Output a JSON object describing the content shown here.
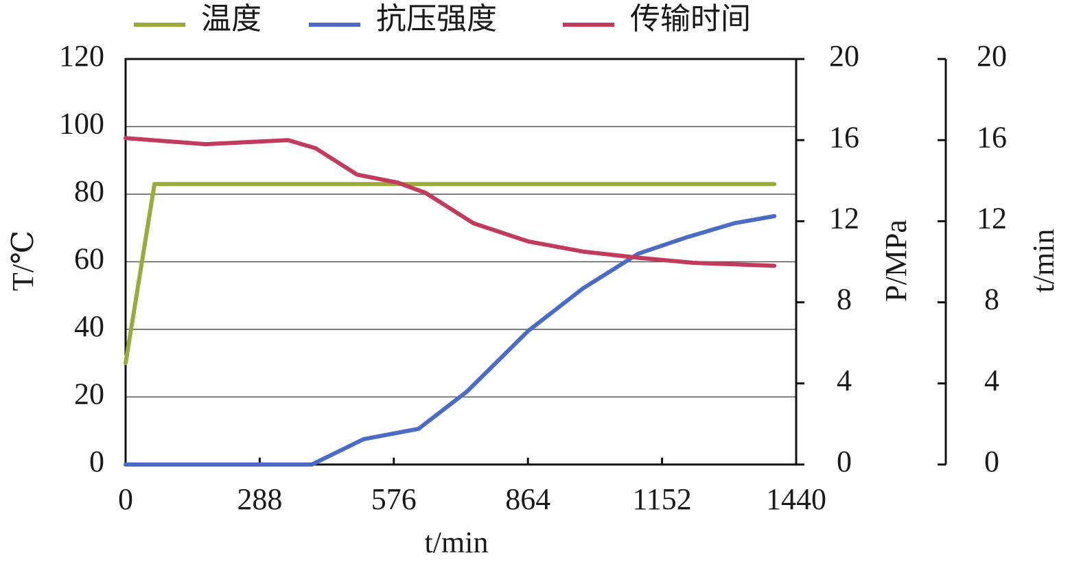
{
  "chart_data": {
    "type": "line",
    "x_label": "t/min",
    "y_label": "T/℃",
    "y2_label": "P/MPa",
    "y3_label": "t/min",
    "xlim": [
      0,
      1440
    ],
    "xticks": [
      0,
      288,
      576,
      864,
      1152,
      1440
    ],
    "ylim": [
      0,
      120
    ],
    "yticks": [
      0,
      20,
      40,
      60,
      80,
      100,
      120
    ],
    "y2lim": [
      0,
      20
    ],
    "y2ticks": [
      0,
      4,
      8,
      12,
      16,
      20
    ],
    "y3lim": [
      0,
      20
    ],
    "y3ticks": [
      0,
      4,
      8,
      12,
      16,
      20
    ],
    "grid": true,
    "series": [
      {
        "name": "温度",
        "color": "#9aab3c",
        "x": [
          0,
          62,
          1393
        ],
        "values": [
          30,
          83,
          83
        ]
      },
      {
        "name": "抗压强度",
        "color": "#4a6cc4",
        "axis": "y2",
        "x": [
          0,
          400,
          511,
          629,
          733,
          865,
          983,
          1101,
          1204,
          1307,
          1393
        ],
        "values": [
          0,
          0,
          1.25,
          1.76,
          3.6,
          6.6,
          8.7,
          10.4,
          11.2,
          11.9,
          12.25
        ]
      },
      {
        "name": "传输时间",
        "color": "#c23a5c",
        "axis": "y3",
        "x": [
          0,
          172,
          349,
          408,
          497,
          585,
          644,
          747,
          865,
          983,
          1101,
          1219,
          1393
        ],
        "values": [
          16.1,
          15.8,
          16.0,
          15.6,
          14.3,
          13.9,
          13.4,
          11.9,
          11.0,
          10.5,
          10.2,
          9.95,
          9.8
        ]
      }
    ]
  }
}
